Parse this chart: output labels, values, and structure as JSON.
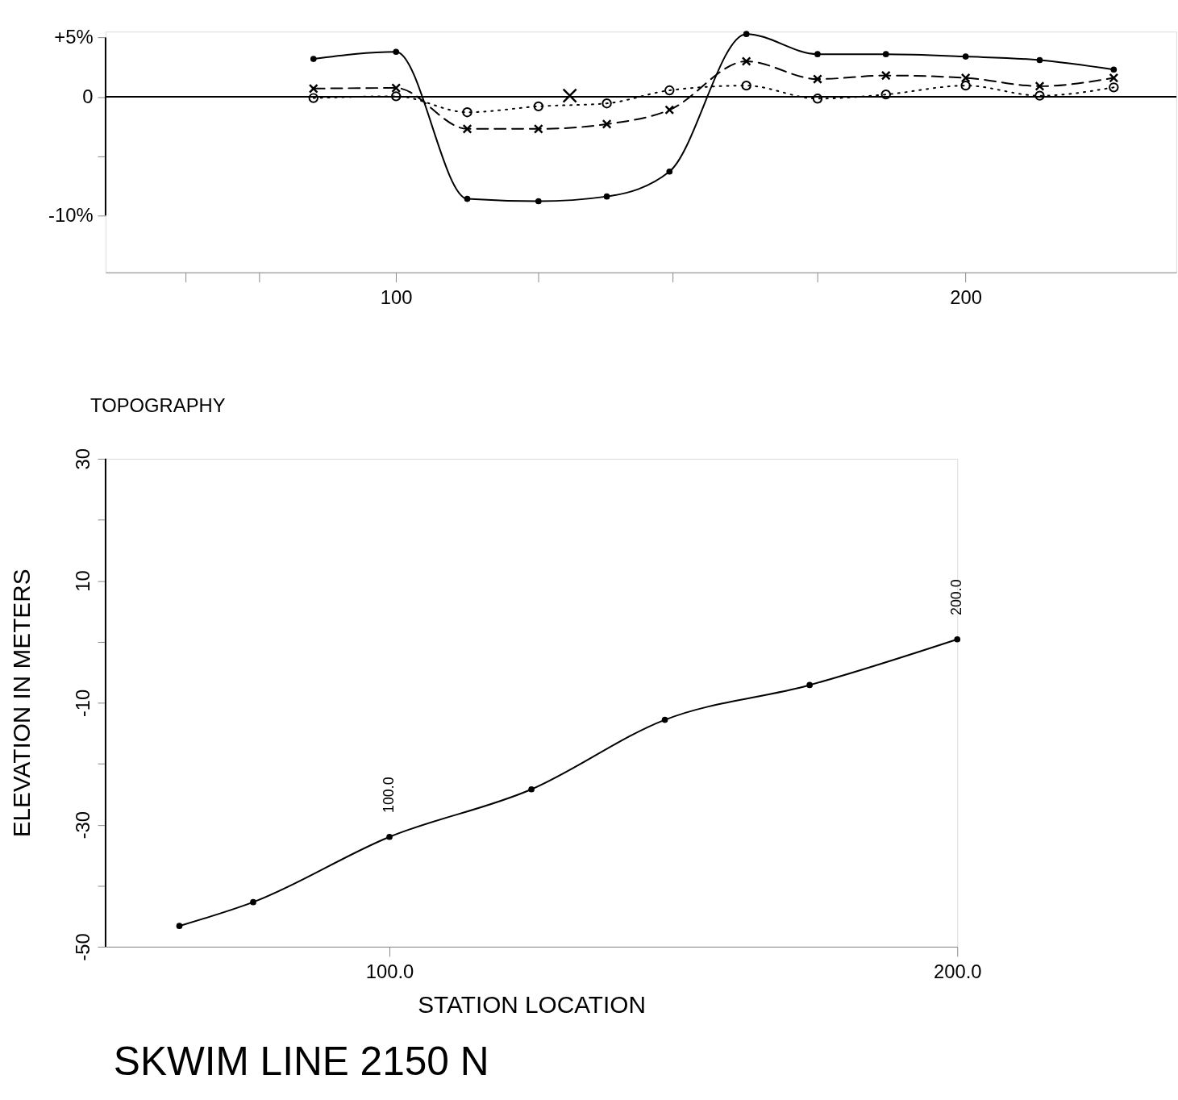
{
  "chart_data": [
    {
      "type": "line",
      "xlim": [
        49,
        237
      ],
      "xticks": [
        {
          "value": 63,
          "label": null
        },
        {
          "value": 76,
          "label": null
        },
        100,
        {
          "value": 125,
          "label": null
        },
        {
          "value": 148.5,
          "label": null
        },
        {
          "value": 174,
          "label": null
        },
        200
      ],
      "ylim": [
        -14.8,
        5.5
      ],
      "yticks": [
        {
          "value": 5,
          "label": "+5%"
        },
        {
          "value": 0,
          "label": "0"
        },
        {
          "value": -5,
          "label": null
        },
        {
          "value": -10,
          "label": "-10%"
        }
      ],
      "grid": false,
      "ref_lines": [
        {
          "axis": "y",
          "value": 0
        }
      ],
      "x": [
        85.5,
        100,
        112.5,
        125,
        137,
        148,
        161.5,
        174,
        186,
        200,
        213,
        226
      ],
      "series": [
        {
          "color": "#000000",
          "line_style": "solid",
          "marker": "circle",
          "values": [
            3.2,
            3.8,
            -8.6,
            -8.8,
            -8.4,
            -6.3,
            5.3,
            3.6,
            3.6,
            3.4,
            3.1,
            2.3
          ]
        },
        {
          "color": "#000000",
          "line_style": "dashed",
          "marker": "cross",
          "values": [
            0.7,
            0.75,
            -2.7,
            -2.7,
            -2.3,
            -1.1,
            3.0,
            1.5,
            1.8,
            1.6,
            0.9,
            1.6
          ]
        },
        {
          "color": "#000000",
          "line_style": "dotted",
          "marker": "circle",
          "values": [
            -0.1,
            0.05,
            -1.3,
            -0.8,
            -0.55,
            0.55,
            0.95,
            -0.15,
            0.2,
            0.95,
            0.1,
            0.8
          ]
        },
        {
          "type": "scatter",
          "color": "#000000",
          "marker": "cross",
          "x": [
            130.5
          ],
          "values": [
            0.1
          ]
        }
      ]
    },
    {
      "type": "line",
      "title": "TOPOGRAPHY",
      "xlabel": "STATION LOCATION",
      "ylabel": "ELEVATION IN METERS",
      "xlim": [
        50,
        200
      ],
      "xticks": [
        {
          "value": 100,
          "label": "100.0"
        },
        {
          "value": 200,
          "label": "200.0"
        }
      ],
      "ylim": [
        -50,
        30
      ],
      "yticks": [
        -50,
        {
          "value": -40,
          "label": null
        },
        -30,
        {
          "value": -20,
          "label": null
        },
        -10,
        {
          "value": 0,
          "label": null
        },
        10,
        {
          "value": 20,
          "label": null
        },
        30
      ],
      "grid": false,
      "x": [
        63,
        76,
        100,
        125,
        148.5,
        174,
        200
      ],
      "series": [
        {
          "color": "#000000",
          "line_style": "solid",
          "marker": "circle",
          "values": [
            -46.6,
            -42.7,
            -32.0,
            -24.2,
            -12.8,
            -7.1,
            0.4
          ]
        }
      ],
      "annotations": [
        {
          "text": "100.0",
          "x": 100,
          "y": -32.0
        },
        {
          "text": "200.0",
          "x": 200,
          "y": 0.4
        },
        "SKWIM LINE 2150 N"
      ]
    }
  ]
}
